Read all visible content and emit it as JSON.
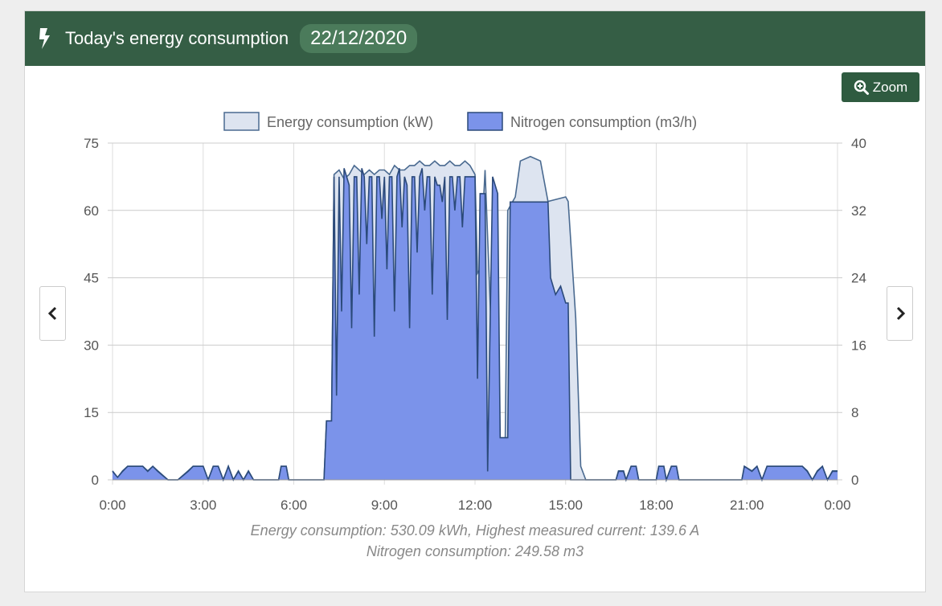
{
  "header": {
    "title": "Today's energy consumption",
    "date": "22/12/2020",
    "icon": "bolt-icon"
  },
  "zoom_label": "Zoom",
  "footer": {
    "line1": "Energy consumption: 530.09 kWh, Highest measured current: 139.6 A",
    "line2": "Nitrogen consumption: 249.58 m3"
  },
  "colors": {
    "header": "#355e45",
    "energy_fill": "#dde4f0",
    "energy_line": "#4a6a90",
    "nitrogen_fill": "#7b93ea",
    "nitrogen_line": "#2b4a7a"
  },
  "chart_data": {
    "type": "area",
    "legend": [
      "Energy consumption (kW)",
      "Nitrogen consumption (m3/h)"
    ],
    "legend_position": "top",
    "grid": true,
    "x_ticks": [
      "0:00",
      "3:00",
      "6:00",
      "9:00",
      "12:00",
      "15:00",
      "18:00",
      "21:00",
      "0:00"
    ],
    "xlim_hours": [
      0,
      24
    ],
    "y_left": {
      "ticks": [
        "0",
        "15",
        "30",
        "45",
        "60",
        "75"
      ],
      "range": [
        0,
        75
      ]
    },
    "y_right": {
      "ticks": [
        "0",
        "8",
        "16",
        "24",
        "32",
        "40"
      ],
      "range": [
        0,
        40
      ]
    },
    "series": [
      {
        "name": "Energy consumption (kW)",
        "axis": "left",
        "points": [
          [
            "0:00",
            2
          ],
          [
            "0:10",
            0.5
          ],
          [
            "0:20",
            2
          ],
          [
            "0:30",
            3
          ],
          [
            "0:40",
            3
          ],
          [
            "0:50",
            3
          ],
          [
            "1:00",
            3
          ],
          [
            "1:10",
            2
          ],
          [
            "1:20",
            3
          ],
          [
            "1:30",
            2
          ],
          [
            "1:40",
            1
          ],
          [
            "1:50",
            0
          ],
          [
            "2:10",
            0
          ],
          [
            "2:20",
            1
          ],
          [
            "2:30",
            2
          ],
          [
            "2:40",
            3
          ],
          [
            "2:50",
            3
          ],
          [
            "3:00",
            3
          ],
          [
            "3:10",
            0
          ],
          [
            "3:20",
            3
          ],
          [
            "3:30",
            3
          ],
          [
            "3:40",
            0
          ],
          [
            "3:50",
            3
          ],
          [
            "4:00",
            0
          ],
          [
            "4:10",
            2
          ],
          [
            "4:20",
            0
          ],
          [
            "4:30",
            2
          ],
          [
            "4:40",
            0
          ],
          [
            "5:30",
            0
          ],
          [
            "5:35",
            3
          ],
          [
            "5:45",
            3
          ],
          [
            "5:50",
            0
          ],
          [
            "7:00",
            0
          ],
          [
            "7:05",
            13
          ],
          [
            "7:15",
            13
          ],
          [
            "7:20",
            68
          ],
          [
            "7:30",
            69
          ],
          [
            "7:40",
            67
          ],
          [
            "7:50",
            68
          ],
          [
            "8:00",
            70
          ],
          [
            "8:10",
            69
          ],
          [
            "8:20",
            68
          ],
          [
            "8:30",
            69
          ],
          [
            "8:40",
            68
          ],
          [
            "8:50",
            69
          ],
          [
            "9:00",
            69
          ],
          [
            "9:10",
            68
          ],
          [
            "9:20",
            70
          ],
          [
            "9:30",
            69
          ],
          [
            "9:40",
            69
          ],
          [
            "9:50",
            70
          ],
          [
            "10:00",
            70
          ],
          [
            "10:10",
            71
          ],
          [
            "10:20",
            70
          ],
          [
            "10:30",
            70
          ],
          [
            "10:40",
            71
          ],
          [
            "10:50",
            70
          ],
          [
            "11:00",
            70
          ],
          [
            "11:10",
            71
          ],
          [
            "11:20",
            70
          ],
          [
            "11:30",
            70
          ],
          [
            "11:40",
            71
          ],
          [
            "11:50",
            70
          ],
          [
            "12:00",
            68
          ],
          [
            "12:05",
            46
          ],
          [
            "12:10",
            47
          ],
          [
            "12:20",
            69
          ],
          [
            "12:40",
            10
          ],
          [
            "12:50",
            9
          ],
          [
            "13:00",
            9
          ],
          [
            "13:05",
            60
          ],
          [
            "13:20",
            63
          ],
          [
            "13:30",
            71
          ],
          [
            "13:50",
            72
          ],
          [
            "14:10",
            71
          ],
          [
            "14:25",
            62
          ],
          [
            "15:00",
            63
          ],
          [
            "15:05",
            62
          ],
          [
            "15:20",
            36
          ],
          [
            "15:30",
            3
          ],
          [
            "15:40",
            0
          ],
          [
            "16:40",
            0
          ],
          [
            "16:45",
            2
          ],
          [
            "16:55",
            2
          ],
          [
            "17:00",
            0
          ],
          [
            "17:10",
            3
          ],
          [
            "17:20",
            3
          ],
          [
            "17:25",
            0
          ],
          [
            "18:00",
            0
          ],
          [
            "18:05",
            3
          ],
          [
            "18:15",
            3
          ],
          [
            "18:20",
            0
          ],
          [
            "18:30",
            3
          ],
          [
            "18:40",
            3
          ],
          [
            "18:45",
            0
          ],
          [
            "20:50",
            0
          ],
          [
            "20:55",
            3
          ],
          [
            "21:10",
            2
          ],
          [
            "21:20",
            3
          ],
          [
            "21:30",
            0
          ],
          [
            "21:40",
            3
          ],
          [
            "22:00",
            3
          ],
          [
            "22:30",
            3
          ],
          [
            "22:50",
            3
          ],
          [
            "23:00",
            2
          ],
          [
            "23:10",
            0
          ],
          [
            "23:20",
            2
          ],
          [
            "23:30",
            3
          ],
          [
            "23:40",
            0
          ],
          [
            "23:50",
            2
          ],
          [
            "24:00",
            2
          ]
        ]
      },
      {
        "name": "Nitrogen consumption (m3/h)",
        "axis": "right",
        "points": [
          [
            "0:00",
            1
          ],
          [
            "0:10",
            0.3
          ],
          [
            "0:20",
            1
          ],
          [
            "0:30",
            1.6
          ],
          [
            "0:40",
            1.6
          ],
          [
            "0:50",
            1.6
          ],
          [
            "1:00",
            1.6
          ],
          [
            "1:10",
            1
          ],
          [
            "1:20",
            1.6
          ],
          [
            "1:30",
            1
          ],
          [
            "1:40",
            0.5
          ],
          [
            "1:50",
            0
          ],
          [
            "2:10",
            0
          ],
          [
            "2:20",
            0.5
          ],
          [
            "2:30",
            1
          ],
          [
            "2:40",
            1.6
          ],
          [
            "2:50",
            1.6
          ],
          [
            "3:00",
            1.6
          ],
          [
            "3:10",
            0
          ],
          [
            "3:20",
            1.6
          ],
          [
            "3:30",
            1.6
          ],
          [
            "3:40",
            0
          ],
          [
            "3:50",
            1.6
          ],
          [
            "4:00",
            0
          ],
          [
            "4:10",
            1
          ],
          [
            "4:20",
            0
          ],
          [
            "4:30",
            1
          ],
          [
            "4:40",
            0
          ],
          [
            "5:30",
            0
          ],
          [
            "5:35",
            1.6
          ],
          [
            "5:45",
            1.6
          ],
          [
            "5:50",
            0
          ],
          [
            "7:00",
            0
          ],
          [
            "7:05",
            7
          ],
          [
            "7:15",
            7
          ],
          [
            "7:20",
            36
          ],
          [
            "7:25",
            10
          ],
          [
            "7:30",
            36
          ],
          [
            "7:35",
            20
          ],
          [
            "7:40",
            37
          ],
          [
            "7:45",
            36
          ],
          [
            "7:50",
            35
          ],
          [
            "7:55",
            18
          ],
          [
            "8:00",
            36
          ],
          [
            "8:05",
            36
          ],
          [
            "8:10",
            22
          ],
          [
            "8:15",
            37
          ],
          [
            "8:20",
            36
          ],
          [
            "8:25",
            28
          ],
          [
            "8:30",
            36
          ],
          [
            "8:35",
            36
          ],
          [
            "8:40",
            17
          ],
          [
            "8:45",
            36
          ],
          [
            "8:50",
            36
          ],
          [
            "8:55",
            31
          ],
          [
            "9:00",
            36
          ],
          [
            "9:05",
            25
          ],
          [
            "9:10",
            36
          ],
          [
            "9:15",
            36
          ],
          [
            "9:20",
            20
          ],
          [
            "9:25",
            36
          ],
          [
            "9:30",
            37
          ],
          [
            "9:35",
            30
          ],
          [
            "9:40",
            36
          ],
          [
            "9:45",
            35
          ],
          [
            "9:50",
            18
          ],
          [
            "9:55",
            36
          ],
          [
            "10:00",
            36
          ],
          [
            "10:05",
            27
          ],
          [
            "10:10",
            36
          ],
          [
            "10:15",
            37
          ],
          [
            "10:20",
            32
          ],
          [
            "10:25",
            36
          ],
          [
            "10:30",
            36
          ],
          [
            "10:35",
            22
          ],
          [
            "10:40",
            36
          ],
          [
            "10:45",
            35
          ],
          [
            "10:50",
            35
          ],
          [
            "10:55",
            33
          ],
          [
            "11:00",
            36
          ],
          [
            "11:05",
            19
          ],
          [
            "11:10",
            36
          ],
          [
            "11:15",
            36
          ],
          [
            "11:20",
            32
          ],
          [
            "11:25",
            36
          ],
          [
            "11:30",
            36
          ],
          [
            "11:35",
            30
          ],
          [
            "11:40",
            36
          ],
          [
            "11:45",
            36
          ],
          [
            "11:50",
            36
          ],
          [
            "12:00",
            36
          ],
          [
            "12:05",
            12
          ],
          [
            "12:10",
            34
          ],
          [
            "12:20",
            34
          ],
          [
            "12:25",
            1
          ],
          [
            "12:35",
            36
          ],
          [
            "12:45",
            34
          ],
          [
            "12:50",
            5
          ],
          [
            "13:05",
            5
          ],
          [
            "13:10",
            33
          ],
          [
            "13:25",
            33
          ],
          [
            "13:30",
            33
          ],
          [
            "14:25",
            33
          ],
          [
            "14:30",
            24
          ],
          [
            "14:40",
            22
          ],
          [
            "14:50",
            23
          ],
          [
            "15:00",
            21
          ],
          [
            "15:05",
            21
          ],
          [
            "15:10",
            0
          ],
          [
            "16:40",
            0
          ],
          [
            "16:45",
            1
          ],
          [
            "16:55",
            1
          ],
          [
            "17:00",
            0
          ],
          [
            "17:10",
            1.6
          ],
          [
            "17:20",
            1.6
          ],
          [
            "17:25",
            0
          ],
          [
            "18:00",
            0
          ],
          [
            "18:05",
            1.6
          ],
          [
            "18:15",
            1.6
          ],
          [
            "18:20",
            0
          ],
          [
            "18:30",
            1.6
          ],
          [
            "18:40",
            1.6
          ],
          [
            "18:45",
            0
          ],
          [
            "20:50",
            0
          ],
          [
            "20:55",
            1.6
          ],
          [
            "21:10",
            1
          ],
          [
            "21:20",
            1.6
          ],
          [
            "21:30",
            0
          ],
          [
            "21:40",
            1.6
          ],
          [
            "22:00",
            1.6
          ],
          [
            "22:30",
            1.6
          ],
          [
            "22:50",
            1.6
          ],
          [
            "23:00",
            1
          ],
          [
            "23:10",
            0
          ],
          [
            "23:20",
            1
          ],
          [
            "23:30",
            1.6
          ],
          [
            "23:40",
            0
          ],
          [
            "23:50",
            1
          ],
          [
            "24:00",
            1
          ]
        ]
      }
    ]
  }
}
